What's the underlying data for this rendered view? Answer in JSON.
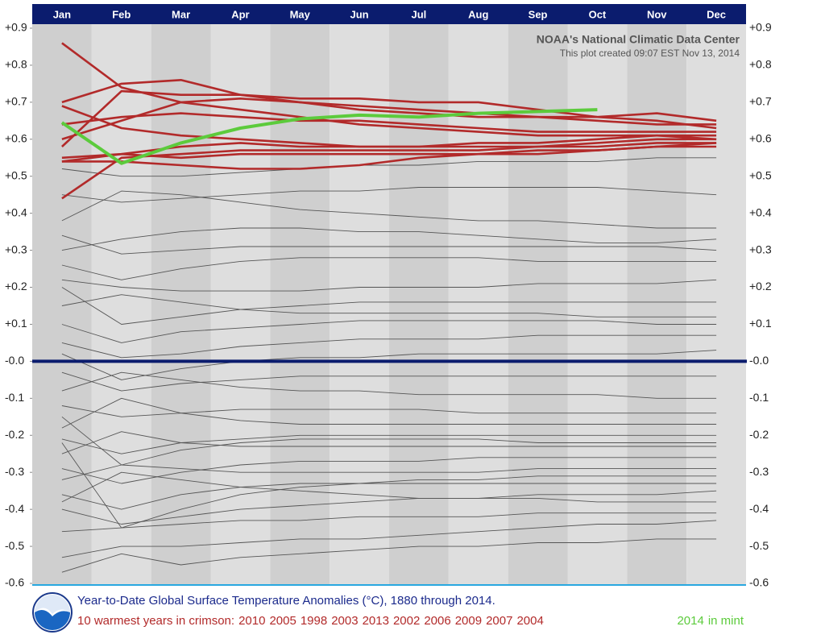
{
  "chart_data": {
    "type": "line",
    "credit": "NOAA's National Climatic Data Center",
    "created": "This plot created 09:07 EST Nov 13, 2014",
    "title": "Year-to-Date Global Surface Temperature Anomalies (°C), 1880 through 2014.",
    "caption_prefix": "10 warmest years in crimson:",
    "mint_suffix": "in mint",
    "categories": [
      "Jan",
      "Feb",
      "Mar",
      "Apr",
      "May",
      "Jun",
      "Jul",
      "Aug",
      "Sep",
      "Oct",
      "Nov",
      "Dec"
    ],
    "ylim": [
      -0.6,
      0.9
    ],
    "yticks": [
      {
        "value": 0.9,
        "label": "+0.9"
      },
      {
        "value": 0.8,
        "label": "+0.8"
      },
      {
        "value": 0.7,
        "label": "+0.7"
      },
      {
        "value": 0.6,
        "label": "+0.6"
      },
      {
        "value": 0.5,
        "label": "+0.5"
      },
      {
        "value": 0.4,
        "label": "+0.4"
      },
      {
        "value": 0.3,
        "label": "+0.3"
      },
      {
        "value": 0.2,
        "label": "+0.2"
      },
      {
        "value": 0.1,
        "label": "+0.1"
      },
      {
        "value": 0,
        "label": "-0.0"
      },
      {
        "value": -0.1,
        "label": "-0.1"
      },
      {
        "value": -0.2,
        "label": "-0.2"
      },
      {
        "value": -0.3,
        "label": "-0.3"
      },
      {
        "value": -0.4,
        "label": "-0.4"
      },
      {
        "value": -0.5,
        "label": "-0.5"
      },
      {
        "value": -0.6,
        "label": "-0.6"
      }
    ],
    "series": [
      {
        "name": "2010",
        "color": "#b22a2a",
        "values": [
          0.7,
          0.75,
          0.76,
          0.72,
          0.7,
          0.68,
          0.67,
          0.66,
          0.66,
          0.66,
          0.67,
          0.65
        ]
      },
      {
        "name": "2005",
        "color": "#b22a2a",
        "values": [
          0.6,
          0.65,
          0.7,
          0.71,
          0.7,
          0.69,
          0.68,
          0.67,
          0.66,
          0.65,
          0.64,
          0.64
        ]
      },
      {
        "name": "1998",
        "color": "#b22a2a",
        "values": [
          0.58,
          0.73,
          0.72,
          0.72,
          0.71,
          0.71,
          0.7,
          0.7,
          0.68,
          0.66,
          0.65,
          0.63
        ]
      },
      {
        "name": "2003",
        "color": "#b22a2a",
        "values": [
          0.64,
          0.66,
          0.67,
          0.66,
          0.65,
          0.65,
          0.64,
          0.63,
          0.62,
          0.62,
          0.62,
          0.62
        ]
      },
      {
        "name": "2013",
        "color": "#b22a2a",
        "values": [
          0.55,
          0.56,
          0.58,
          0.59,
          0.58,
          0.58,
          0.58,
          0.59,
          0.59,
          0.6,
          0.61,
          0.61
        ]
      },
      {
        "name": "2002",
        "color": "#b22a2a",
        "values": [
          0.69,
          0.63,
          0.61,
          0.6,
          0.59,
          0.58,
          0.58,
          0.58,
          0.58,
          0.59,
          0.6,
          0.6
        ]
      },
      {
        "name": "2006",
        "color": "#b22a2a",
        "values": [
          0.44,
          0.55,
          0.56,
          0.57,
          0.57,
          0.57,
          0.57,
          0.57,
          0.58,
          0.58,
          0.59,
          0.59
        ]
      },
      {
        "name": "2009",
        "color": "#b22a2a",
        "values": [
          0.54,
          0.54,
          0.53,
          0.52,
          0.52,
          0.53,
          0.55,
          0.56,
          0.56,
          0.57,
          0.58,
          0.59
        ]
      },
      {
        "name": "2007",
        "color": "#b22a2a",
        "values": [
          0.86,
          0.74,
          0.7,
          0.68,
          0.66,
          0.64,
          0.63,
          0.62,
          0.61,
          0.61,
          0.61,
          0.6
        ]
      },
      {
        "name": "2004",
        "color": "#b22a2a",
        "values": [
          0.54,
          0.56,
          0.55,
          0.56,
          0.56,
          0.56,
          0.56,
          0.56,
          0.57,
          0.57,
          0.58,
          0.58
        ]
      }
    ],
    "current": {
      "name": "2014",
      "color": "#5ccb3c",
      "values": [
        0.645,
        0.535,
        0.59,
        0.63,
        0.655,
        0.665,
        0.66,
        0.67,
        0.675,
        0.68,
        null,
        null
      ]
    },
    "other_color": "#555555",
    "other_years": [
      {
        "values": [
          0.45,
          0.43,
          0.44,
          0.45,
          0.46,
          0.46,
          0.47,
          0.47,
          0.47,
          0.47,
          0.46,
          0.45
        ]
      },
      {
        "values": [
          0.52,
          0.5,
          0.5,
          0.51,
          0.52,
          0.53,
          0.53,
          0.54,
          0.54,
          0.54,
          0.55,
          0.55
        ]
      },
      {
        "values": [
          0.38,
          0.46,
          0.45,
          0.43,
          0.41,
          0.4,
          0.39,
          0.38,
          0.38,
          0.37,
          0.36,
          0.36
        ]
      },
      {
        "values": [
          0.3,
          0.33,
          0.35,
          0.36,
          0.36,
          0.35,
          0.35,
          0.34,
          0.33,
          0.32,
          0.32,
          0.33
        ]
      },
      {
        "values": [
          0.26,
          0.22,
          0.25,
          0.27,
          0.28,
          0.28,
          0.28,
          0.28,
          0.27,
          0.27,
          0.27,
          0.27
        ]
      },
      {
        "values": [
          0.22,
          0.2,
          0.19,
          0.19,
          0.19,
          0.2,
          0.2,
          0.2,
          0.21,
          0.21,
          0.21,
          0.22
        ]
      },
      {
        "values": [
          0.15,
          0.18,
          0.16,
          0.14,
          0.13,
          0.13,
          0.13,
          0.13,
          0.13,
          0.12,
          0.12,
          0.12
        ]
      },
      {
        "values": [
          0.1,
          0.05,
          0.08,
          0.09,
          0.1,
          0.11,
          0.11,
          0.11,
          0.11,
          0.11,
          0.1,
          0.1
        ]
      },
      {
        "values": [
          0.05,
          0.01,
          0.02,
          0.04,
          0.05,
          0.06,
          0.06,
          0.06,
          0.07,
          0.07,
          0.07,
          0.07
        ]
      },
      {
        "values": [
          0.02,
          -0.05,
          -0.02,
          0.0,
          0.01,
          0.01,
          0.02,
          0.02,
          0.02,
          0.02,
          0.02,
          0.03
        ]
      },
      {
        "values": [
          -0.03,
          -0.08,
          -0.06,
          -0.05,
          -0.04,
          -0.04,
          -0.04,
          -0.04,
          -0.04,
          -0.04,
          -0.04,
          -0.04
        ]
      },
      {
        "values": [
          -0.08,
          -0.03,
          -0.05,
          -0.07,
          -0.08,
          -0.08,
          -0.09,
          -0.09,
          -0.09,
          -0.09,
          -0.1,
          -0.1
        ]
      },
      {
        "values": [
          -0.12,
          -0.15,
          -0.14,
          -0.13,
          -0.13,
          -0.13,
          -0.13,
          -0.14,
          -0.14,
          -0.14,
          -0.14,
          -0.14
        ]
      },
      {
        "values": [
          -0.18,
          -0.1,
          -0.14,
          -0.16,
          -0.17,
          -0.17,
          -0.17,
          -0.17,
          -0.17,
          -0.17,
          -0.17,
          -0.17
        ]
      },
      {
        "values": [
          -0.21,
          -0.25,
          -0.22,
          -0.21,
          -0.2,
          -0.2,
          -0.2,
          -0.2,
          -0.2,
          -0.2,
          -0.2,
          -0.2
        ]
      },
      {
        "values": [
          -0.25,
          -0.19,
          -0.22,
          -0.23,
          -0.23,
          -0.23,
          -0.23,
          -0.23,
          -0.23,
          -0.23,
          -0.23,
          -0.23
        ]
      },
      {
        "values": [
          -0.29,
          -0.33,
          -0.3,
          -0.28,
          -0.27,
          -0.27,
          -0.27,
          -0.26,
          -0.26,
          -0.26,
          -0.26,
          -0.26
        ]
      },
      {
        "values": [
          -0.32,
          -0.28,
          -0.29,
          -0.3,
          -0.3,
          -0.3,
          -0.3,
          -0.3,
          -0.29,
          -0.29,
          -0.29,
          -0.29
        ]
      },
      {
        "values": [
          -0.36,
          -0.4,
          -0.36,
          -0.34,
          -0.33,
          -0.33,
          -0.33,
          -0.33,
          -0.33,
          -0.33,
          -0.33,
          -0.33
        ]
      },
      {
        "values": [
          -0.4,
          -0.44,
          -0.42,
          -0.4,
          -0.39,
          -0.38,
          -0.37,
          -0.37,
          -0.36,
          -0.36,
          -0.36,
          -0.35
        ]
      },
      {
        "values": [
          -0.46,
          -0.45,
          -0.44,
          -0.43,
          -0.43,
          -0.42,
          -0.42,
          -0.42,
          -0.41,
          -0.41,
          -0.41,
          -0.41
        ]
      },
      {
        "values": [
          -0.53,
          -0.5,
          -0.5,
          -0.49,
          -0.48,
          -0.48,
          -0.47,
          -0.46,
          -0.45,
          -0.44,
          -0.44,
          -0.43
        ]
      },
      {
        "values": [
          -0.57,
          -0.52,
          -0.55,
          -0.53,
          -0.52,
          -0.51,
          -0.5,
          -0.5,
          -0.49,
          -0.49,
          -0.48,
          -0.48
        ]
      },
      {
        "values": [
          -0.15,
          -0.28,
          -0.24,
          -0.22,
          -0.21,
          -0.21,
          -0.21,
          -0.21,
          -0.22,
          -0.22,
          -0.22,
          -0.22
        ]
      },
      {
        "values": [
          0.2,
          0.1,
          0.12,
          0.14,
          0.15,
          0.16,
          0.16,
          0.16,
          0.16,
          0.16,
          0.16,
          0.16
        ]
      },
      {
        "values": [
          -0.38,
          -0.3,
          -0.32,
          -0.34,
          -0.35,
          -0.36,
          -0.37,
          -0.37,
          -0.37,
          -0.38,
          -0.38,
          -0.38
        ]
      },
      {
        "values": [
          -0.22,
          -0.45,
          -0.4,
          -0.36,
          -0.34,
          -0.33,
          -0.32,
          -0.32,
          -0.31,
          -0.31,
          -0.31,
          -0.31
        ]
      },
      {
        "values": [
          0.34,
          0.29,
          0.3,
          0.31,
          0.31,
          0.31,
          0.31,
          0.31,
          0.31,
          0.31,
          0.31,
          0.3
        ]
      }
    ]
  }
}
